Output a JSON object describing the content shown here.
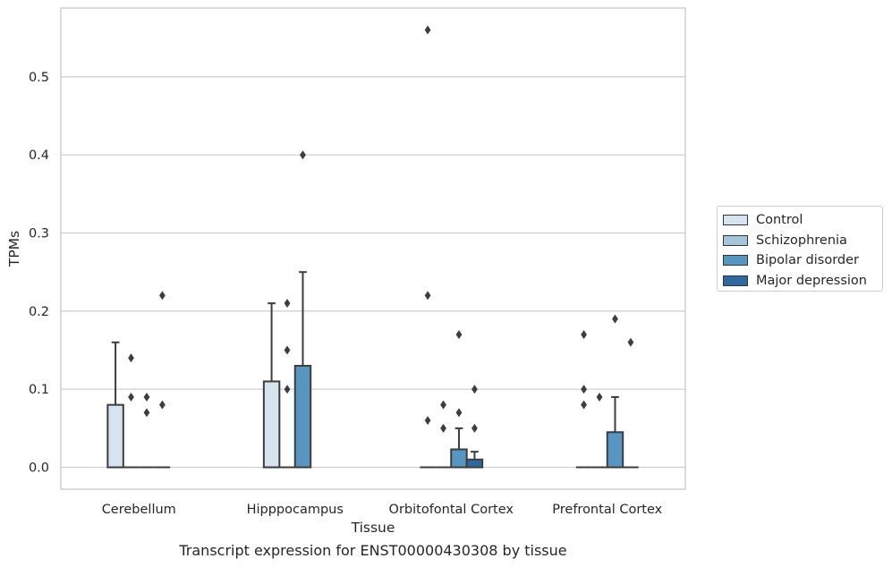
{
  "caption": "Transcript expression for ENST00000430308 by tissue",
  "chart_data": {
    "type": "box",
    "title": "",
    "xlabel": "Tissue",
    "ylabel": "TPMs",
    "ylim": [
      -0.028,
      0.588
    ],
    "yticks": [
      0.0,
      0.1,
      0.2,
      0.3,
      0.4,
      0.5
    ],
    "ytick_labels": [
      "0.0",
      "0.1",
      "0.2",
      "0.3",
      "0.4",
      "0.5"
    ],
    "grid": "horizontal",
    "legend_position": "right",
    "categories": [
      "Cerebellum",
      "Hipppocampus",
      "Orbitofontal Cortex",
      "Prefrontal Cortex"
    ],
    "series": [
      {
        "name": "Control",
        "color": "#d6e4f0",
        "boxes": [
          {
            "q1": 0,
            "median": 0,
            "q3": 0.08,
            "whislo": 0,
            "whishi": 0.16,
            "fliers": []
          },
          {
            "q1": 0,
            "median": 0,
            "q3": 0.11,
            "whislo": 0,
            "whishi": 0.21,
            "fliers": []
          },
          {
            "q1": 0,
            "median": 0,
            "q3": 0,
            "whislo": 0,
            "whishi": 0,
            "fliers": [
              0.06,
              0.22,
              0.56
            ]
          },
          {
            "q1": 0,
            "median": 0,
            "q3": 0,
            "whislo": 0,
            "whishi": 0,
            "fliers": [
              0.08,
              0.1,
              0.17
            ]
          }
        ]
      },
      {
        "name": "Schizophrenia",
        "color": "#a4c5dc",
        "boxes": [
          {
            "q1": 0,
            "median": 0,
            "q3": 0,
            "whislo": 0,
            "whishi": 0,
            "fliers": [
              0.09,
              0.14
            ]
          },
          {
            "q1": 0,
            "median": 0,
            "q3": 0,
            "whislo": 0,
            "whishi": 0,
            "fliers": [
              0.1,
              0.15,
              0.21
            ]
          },
          {
            "q1": 0,
            "median": 0,
            "q3": 0,
            "whislo": 0,
            "whishi": 0,
            "fliers": [
              0.05,
              0.08
            ]
          },
          {
            "q1": 0,
            "median": 0,
            "q3": 0,
            "whislo": 0,
            "whishi": 0,
            "fliers": [
              0.09
            ]
          }
        ]
      },
      {
        "name": "Bipolar disorder",
        "color": "#5796c0",
        "boxes": [
          {
            "q1": 0,
            "median": 0,
            "q3": 0,
            "whislo": 0,
            "whishi": 0,
            "fliers": [
              0.07,
              0.09
            ]
          },
          {
            "q1": 0,
            "median": 0,
            "q3": 0.13,
            "whislo": 0,
            "whishi": 0.25,
            "fliers": [
              0.4
            ]
          },
          {
            "q1": 0,
            "median": 0,
            "q3": 0.023,
            "whislo": 0,
            "whishi": 0.05,
            "fliers": [
              0.07,
              0.17
            ]
          },
          {
            "q1": 0,
            "median": 0,
            "q3": 0.045,
            "whislo": 0,
            "whishi": 0.09,
            "fliers": [
              0.19
            ]
          }
        ]
      },
      {
        "name": "Major depression",
        "color": "#2d6aa4",
        "boxes": [
          {
            "q1": 0,
            "median": 0,
            "q3": 0,
            "whislo": 0,
            "whishi": 0,
            "fliers": [
              0.08,
              0.22
            ]
          },
          null,
          {
            "q1": 0,
            "median": 0,
            "q3": 0.01,
            "whislo": 0,
            "whishi": 0.02,
            "fliers": [
              0.05,
              0.1
            ]
          },
          {
            "q1": 0,
            "median": 0,
            "q3": 0,
            "whislo": 0,
            "whishi": 0,
            "fliers": [
              0.16
            ]
          }
        ]
      }
    ]
  }
}
